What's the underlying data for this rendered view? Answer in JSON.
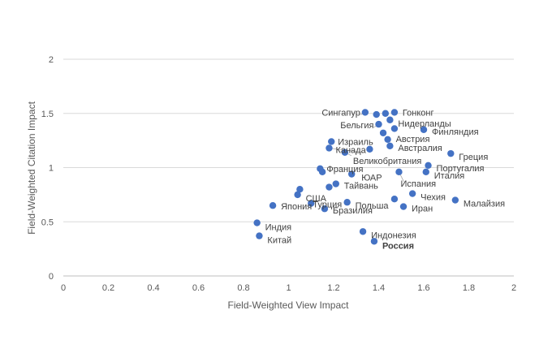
{
  "chart_data": {
    "type": "scatter",
    "xlabel": "Field-Weighted View Impact",
    "ylabel": "Field-Weighted Citation Impact",
    "xlim": [
      0,
      2
    ],
    "ylim": [
      0,
      2
    ],
    "xticks": [
      "0",
      "0.2",
      "0.4",
      "0.6",
      "0.8",
      "1",
      "1.2",
      "1.4",
      "1.6",
      "1.8",
      "2"
    ],
    "yticks": [
      "0",
      "0.5",
      "1",
      "1.5",
      "2"
    ],
    "grid": "horizontal",
    "legend": "none",
    "marker_color": "#4472C4",
    "points": [
      {
        "label": "Сингапур",
        "x": 1.34,
        "y": 1.51
      },
      {
        "label": "Гонконг",
        "x": 1.47,
        "y": 1.51
      },
      {
        "label": "",
        "x": 1.39,
        "y": 1.49
      },
      {
        "label": "",
        "x": 1.43,
        "y": 1.5
      },
      {
        "label": "Нидерланды",
        "x": 1.45,
        "y": 1.44
      },
      {
        "label": "Бельгия",
        "x": 1.4,
        "y": 1.4
      },
      {
        "label": "",
        "x": 1.47,
        "y": 1.36
      },
      {
        "label": "Финляндия",
        "x": 1.6,
        "y": 1.35
      },
      {
        "label": "",
        "x": 1.42,
        "y": 1.32
      },
      {
        "label": "Австрия",
        "x": 1.44,
        "y": 1.26
      },
      {
        "label": "Израиль",
        "x": 1.19,
        "y": 1.24
      },
      {
        "label": "Канада",
        "x": 1.18,
        "y": 1.18
      },
      {
        "label": "Австралия",
        "x": 1.45,
        "y": 1.2
      },
      {
        "label": "",
        "x": 1.36,
        "y": 1.17
      },
      {
        "label": "Великобритания",
        "x": 1.25,
        "y": 1.14
      },
      {
        "label": "Греция",
        "x": 1.72,
        "y": 1.13
      },
      {
        "label": "Португалия",
        "x": 1.62,
        "y": 1.02
      },
      {
        "label": "Франция",
        "x": 1.14,
        "y": 0.99
      },
      {
        "label": "",
        "x": 1.15,
        "y": 0.96
      },
      {
        "label": "Италия",
        "x": 1.61,
        "y": 0.96
      },
      {
        "label": "Испания",
        "x": 1.49,
        "y": 0.96
      },
      {
        "label": "ЮАР",
        "x": 1.28,
        "y": 0.94
      },
      {
        "label": "Тайвань",
        "x": 1.21,
        "y": 0.85
      },
      {
        "label": "",
        "x": 1.18,
        "y": 0.82
      },
      {
        "label": "",
        "x": 1.05,
        "y": 0.8
      },
      {
        "label": "США",
        "x": 1.04,
        "y": 0.75
      },
      {
        "label": "Чехия",
        "x": 1.55,
        "y": 0.76
      },
      {
        "label": "",
        "x": 1.47,
        "y": 0.71
      },
      {
        "label": "Малайзия",
        "x": 1.74,
        "y": 0.7
      },
      {
        "label": "Турция",
        "x": 1.1,
        "y": 0.67
      },
      {
        "label": "Польша",
        "x": 1.26,
        "y": 0.68
      },
      {
        "label": "Япония",
        "x": 0.93,
        "y": 0.65
      },
      {
        "label": "Иран",
        "x": 1.51,
        "y": 0.64
      },
      {
        "label": "Бразилия",
        "x": 1.16,
        "y": 0.62
      },
      {
        "label": "Индия",
        "x": 0.86,
        "y": 0.49
      },
      {
        "label": "Индонезия",
        "x": 1.33,
        "y": 0.41
      },
      {
        "label": "Китай",
        "x": 0.87,
        "y": 0.37
      },
      {
        "label": "Россия",
        "x": 1.38,
        "y": 0.32,
        "bold": true
      }
    ]
  }
}
